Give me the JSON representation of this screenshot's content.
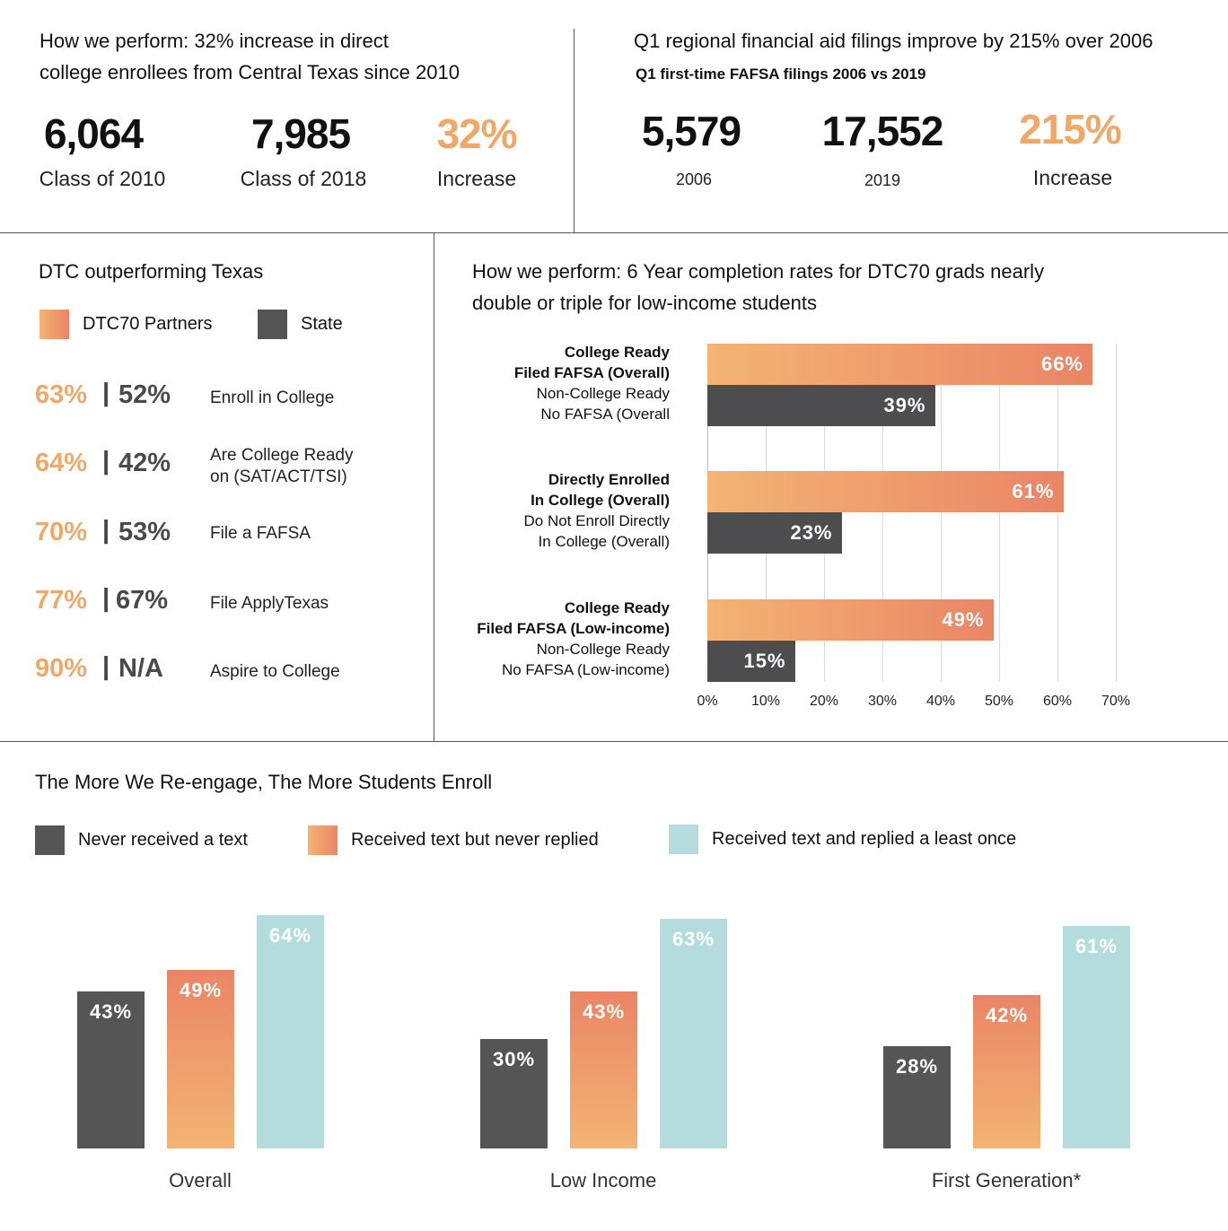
{
  "enrollees": {
    "heading_line1": "How we perform: 32% increase in direct",
    "heading_line2": "college enrollees from Central Texas since 2010",
    "stats": [
      {
        "value": "6,064",
        "label": "Class of 2010",
        "highlight": false
      },
      {
        "value": "7,985",
        "label": "Class of 2018",
        "highlight": false
      },
      {
        "value": "32%",
        "label": "Increase",
        "highlight": true
      }
    ]
  },
  "fafsa": {
    "heading": "Q1 regional financial aid filings improve by 215% over 2006",
    "subheading": "Q1 first-time FAFSA filings 2006 vs 2019",
    "stats": [
      {
        "value": "5,579",
        "label": "2006",
        "highlight": false
      },
      {
        "value": "17,552",
        "label": "2019",
        "highlight": false
      },
      {
        "value": "215%",
        "label": "Increase",
        "highlight": true
      }
    ]
  },
  "dtc": {
    "heading": "DTC outperforming Texas",
    "legend": [
      {
        "name": "DTC70 Partners",
        "color": "#ee9a6b"
      },
      {
        "name": "State",
        "color": "#555556"
      }
    ],
    "separator": "|",
    "rows": [
      {
        "dtc": "63%",
        "state": "52%",
        "label1": "Enroll in College",
        "label2": ""
      },
      {
        "dtc": "64%",
        "state": "42%",
        "label1": "Are College Ready",
        "label2": "on (SAT/ACT/TSI)"
      },
      {
        "dtc": "70%",
        "state": "53%",
        "label1": "File a FAFSA",
        "label2": ""
      },
      {
        "dtc": "77%",
        "state": "67%",
        "label1": "File ApplyTexas",
        "label2": ""
      },
      {
        "dtc": "90%",
        "state": "N/A",
        "label1": "Aspire to College",
        "label2": ""
      }
    ]
  },
  "completion_heading_line1": "How we perform: 6 Year completion rates for DTC70 grads nearly",
  "completion_heading_line2": "double or triple for low-income students",
  "reengage": {
    "heading": "The More We Re-engage, The More Students Enroll",
    "legend": [
      {
        "name": "Never received a text",
        "color": "#555556"
      },
      {
        "name": "Received text but never replied",
        "color": "#ee9a6b"
      },
      {
        "name": "Received text and replied a least once",
        "color": "#b4dcdc"
      }
    ]
  },
  "chart_data": [
    {
      "type": "bar",
      "orientation": "horizontal",
      "title": "How we perform: 6 Year completion rates for DTC70 grads nearly double or triple for low-income students",
      "categories": [
        [
          "College Ready",
          "Filed FAFSA (Overall)"
        ],
        [
          "Non-College Ready",
          "No FAFSA (Overall"
        ],
        [
          "Directly Enrolled",
          "In College (Overall)"
        ],
        [
          "Do Not Enroll Directly",
          "In College (Overall)"
        ],
        [
          "College Ready",
          "Filed FAFSA (Low-income)"
        ],
        [
          "Non-College Ready",
          "No FAFSA (Low-income)"
        ]
      ],
      "values": [
        66,
        39,
        61,
        23,
        49,
        15
      ],
      "value_labels": [
        "66%",
        "39%",
        "61%",
        "23%",
        "49%",
        "15%"
      ],
      "bar_colors": [
        "orange",
        "dark",
        "orange",
        "dark",
        "orange",
        "dark"
      ],
      "xlim": [
        0,
        70
      ],
      "ticks": [
        "0%",
        "10%",
        "20%",
        "30%",
        "40%",
        "50%",
        "60%",
        "70%"
      ],
      "grid": true
    },
    {
      "type": "bar",
      "orientation": "vertical",
      "title": "The More We Re-engage, The More Students Enroll",
      "categories": [
        "Overall",
        "Low Income",
        "First Generation*"
      ],
      "series": [
        {
          "name": "Never received a text",
          "values": [
            43,
            30,
            28
          ],
          "labels": [
            "43%",
            "30%",
            "28%"
          ]
        },
        {
          "name": "Received text but never replied",
          "values": [
            49,
            43,
            42
          ],
          "labels": [
            "49%",
            "43%",
            "42%"
          ]
        },
        {
          "name": "Received text and replied a least once",
          "values": [
            64,
            63,
            61
          ],
          "labels": [
            "64%",
            "63%",
            "61%"
          ]
        }
      ],
      "legend": "top-left"
    }
  ]
}
